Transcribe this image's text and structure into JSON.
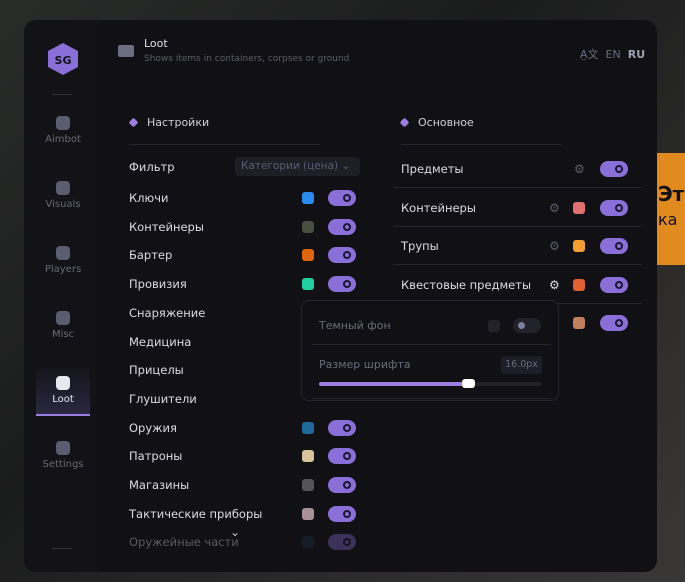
{
  "background_banner": {
    "line1": "Эт",
    "line2": "ка"
  },
  "sidebar": {
    "items": [
      {
        "label": "Aimbot",
        "icon": "alien-icon"
      },
      {
        "label": "Visuals",
        "icon": "vr-headset-icon"
      },
      {
        "label": "Players",
        "icon": "users-icon"
      },
      {
        "label": "Misc",
        "icon": "dots-icon"
      },
      {
        "label": "Loot",
        "icon": "toolbox-icon",
        "active": true
      },
      {
        "label": "Settings",
        "icon": "list-icon"
      }
    ]
  },
  "header": {
    "title": "Loot",
    "subtitle": "Shows items in containers, corpses or ground",
    "lang": {
      "en": "EN",
      "ru": "RU",
      "active": "RU"
    }
  },
  "settings": {
    "title": "Настройки",
    "filter_label": "Фильтр",
    "filter_value": "Категории (цена)",
    "items": [
      {
        "label": "Ключи",
        "color": "#2b8cf0",
        "on": true
      },
      {
        "label": "Контейнеры",
        "color": "#4a4f3f",
        "on": true
      },
      {
        "label": "Бартер",
        "color": "#e0650f",
        "on": true
      },
      {
        "label": "Провизия",
        "color": "#20d0a0",
        "on": true
      },
      {
        "label": "Снаряжение"
      },
      {
        "label": "Медицина"
      },
      {
        "label": "Прицелы"
      },
      {
        "label": "Глушители"
      },
      {
        "label": "Оружия",
        "color": "#1f6a9a",
        "on": true
      },
      {
        "label": "Патроны",
        "color": "#d8c49a",
        "on": true
      },
      {
        "label": "Магазины",
        "color": "#555558",
        "on": true
      },
      {
        "label": "Тактические приборы",
        "color": "#a89098",
        "on": true
      },
      {
        "label": "Оружейные части",
        "color": "#1c3244",
        "on": true
      }
    ]
  },
  "main": {
    "title": "Основное",
    "items": [
      {
        "label": "Предметы",
        "on": true
      },
      {
        "label": "Контейнеры",
        "color": "#e07070",
        "on": true
      },
      {
        "label": "Трупы",
        "color": "#f0a030",
        "on": true
      },
      {
        "label": "Квестовые предметы",
        "color": "#e06030",
        "on": true
      },
      {
        "label": "",
        "color": "#c08060",
        "on": true
      }
    ]
  },
  "popup": {
    "dark_bg_label": "Темный фон",
    "dark_bg_on": false,
    "font_size_label": "Размер шрифта",
    "font_size_value": "16.0px",
    "font_size_fraction": 0.67
  },
  "colors": {
    "accent": "#8b6fd8"
  }
}
